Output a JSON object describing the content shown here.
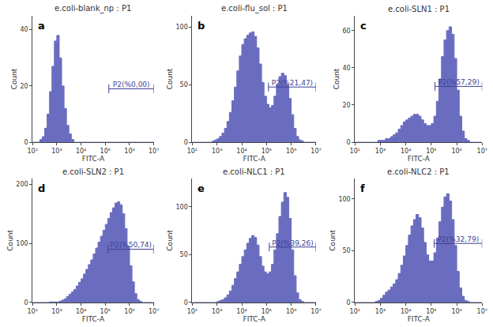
{
  "chart_data": [
    {
      "type": "histogram",
      "title": "e.coli-blank_np : P1",
      "panel": "a",
      "xlabel": "FITC-A",
      "ylabel": "Count",
      "log": "x",
      "grid": false,
      "color": "#6a6dbf",
      "bins": [
        100,
        125.9,
        158.5,
        199.5,
        251.2,
        316.2,
        398.1,
        501.2,
        631,
        794.3,
        1000,
        1259,
        1585,
        1995,
        2512,
        3162,
        3981,
        5012,
        6310,
        7943,
        10000,
        12590,
        15850,
        19950,
        25120,
        31620,
        39810,
        50120,
        63100,
        79430,
        100000,
        125900,
        158500,
        199500,
        251200,
        316200,
        398100,
        501200,
        631000,
        794300,
        1000000,
        1259000,
        1585000,
        1995000,
        2512000,
        3162000,
        3981000,
        5012000,
        6310000,
        7943000,
        10000000
      ],
      "values": [
        0,
        0,
        0,
        1,
        2,
        5,
        10,
        18,
        27,
        36,
        38,
        30,
        20,
        12,
        6,
        3,
        1,
        0,
        0,
        0,
        0,
        0,
        0,
        0,
        0,
        0,
        0,
        0,
        0,
        0,
        0,
        0,
        0,
        0,
        0,
        0,
        0,
        0,
        0,
        0,
        0,
        0,
        0,
        0,
        0,
        0,
        0,
        0,
        0,
        0
      ],
      "gate": {
        "label": "P2(%0,00)",
        "x": [
          140000,
          10000000
        ],
        "y": 19
      },
      "xlim": [
        100,
        10000000
      ],
      "xticks": [
        {
          "value": 100,
          "label": "10²"
        },
        {
          "value": 1000,
          "label": "10³"
        },
        {
          "value": 10000,
          "label": "10⁴"
        },
        {
          "value": 100000,
          "label": "10⁵"
        },
        {
          "value": 1000000,
          "label": "10⁶"
        },
        {
          "value": 10000000,
          "label": "10⁷"
        }
      ],
      "ylim": [
        0,
        45
      ],
      "yticks": [
        0,
        20,
        40
      ]
    },
    {
      "type": "histogram",
      "title": "e.coli-flu_sol : P1",
      "panel": "b",
      "xlabel": "FITC-A",
      "ylabel": "Count",
      "log": "x",
      "grid": false,
      "color": "#6a6dbf",
      "bins": [
        100,
        125.9,
        158.5,
        199.5,
        251.2,
        316.2,
        398.1,
        501.2,
        631,
        794.3,
        1000,
        1259,
        1585,
        1995,
        2512,
        3162,
        3981,
        5012,
        6310,
        7943,
        10000,
        12590,
        15850,
        19950,
        25120,
        31620,
        39810,
        50120,
        63100,
        79430,
        100000,
        125900,
        158500,
        199500,
        251200,
        316200,
        398100,
        501200,
        631000,
        794300,
        1000000,
        1259000,
        1585000,
        1995000,
        2512000,
        3162000,
        3981000,
        5012000,
        6310000,
        7943000,
        10000000
      ],
      "values": [
        0,
        0,
        0,
        0,
        0,
        0,
        0,
        0,
        1,
        2,
        3,
        5,
        8,
        12,
        18,
        26,
        36,
        48,
        62,
        75,
        85,
        90,
        93,
        95,
        96,
        92,
        82,
        68,
        52,
        40,
        33,
        30,
        32,
        40,
        50,
        57,
        60,
        58,
        50,
        38,
        24,
        12,
        5,
        2,
        1,
        0,
        0,
        0,
        0,
        0
      ],
      "gate": {
        "label": "P2(%21,47)",
        "x": [
          120000,
          10000000
        ],
        "y": 48
      },
      "xlim": [
        100,
        10000000
      ],
      "xticks": [
        {
          "value": 100,
          "label": "10²"
        },
        {
          "value": 1000,
          "label": "10³"
        },
        {
          "value": 10000,
          "label": "10⁴"
        },
        {
          "value": 100000,
          "label": "10⁵"
        },
        {
          "value": 1000000,
          "label": "10⁶"
        },
        {
          "value": 10000000,
          "label": "10⁷"
        }
      ],
      "ylim": [
        0,
        110
      ],
      "yticks": [
        0,
        50,
        100
      ]
    },
    {
      "type": "histogram",
      "title": "e.coli-SLN1 : P1",
      "panel": "c",
      "xlabel": "FITC-A",
      "ylabel": "Count",
      "log": "x",
      "grid": false,
      "color": "#6a6dbf",
      "bins": [
        100,
        125.9,
        158.5,
        199.5,
        251.2,
        316.2,
        398.1,
        501.2,
        631,
        794.3,
        1000,
        1259,
        1585,
        1995,
        2512,
        3162,
        3981,
        5012,
        6310,
        7943,
        10000,
        12590,
        15850,
        19950,
        25120,
        31620,
        39810,
        50120,
        63100,
        79430,
        100000,
        125900,
        158500,
        199500,
        251200,
        316200,
        398100,
        501200,
        631000,
        794300,
        1000000,
        1259000,
        1585000,
        1995000,
        2512000,
        3162000,
        3981000,
        5012000,
        6310000,
        7943000,
        10000000
      ],
      "values": [
        0,
        0,
        0,
        0,
        0,
        0,
        0,
        0,
        0,
        1,
        1,
        1,
        2,
        2,
        3,
        4,
        5,
        7,
        9,
        11,
        12,
        13,
        14,
        15,
        15,
        14,
        12,
        10,
        9,
        9,
        10,
        14,
        22,
        34,
        46,
        55,
        60,
        62,
        58,
        45,
        28,
        14,
        6,
        2,
        1,
        0,
        0,
        0,
        0,
        0
      ],
      "gate": {
        "label": "P2(%57,29)",
        "x": [
          140000,
          10000000
        ],
        "y": 30
      },
      "xlim": [
        100,
        10000000
      ],
      "xticks": [
        {
          "value": 100,
          "label": "10²"
        },
        {
          "value": 1000,
          "label": "10³"
        },
        {
          "value": 10000,
          "label": "10⁴"
        },
        {
          "value": 100000,
          "label": "10⁵"
        },
        {
          "value": 1000000,
          "label": "10⁶"
        },
        {
          "value": 10000000,
          "label": "10⁷"
        }
      ],
      "ylim": [
        0,
        68
      ],
      "yticks": [
        0,
        20,
        40,
        60
      ]
    },
    {
      "type": "histogram",
      "title": "e.coli-SLN2 : P1",
      "panel": "d",
      "xlabel": "FITC-A",
      "ylabel": "Count",
      "log": "x",
      "grid": false,
      "color": "#6a6dbf",
      "bins": [
        100,
        125.9,
        158.5,
        199.5,
        251.2,
        316.2,
        398.1,
        501.2,
        631,
        794.3,
        1000,
        1259,
        1585,
        1995,
        2512,
        3162,
        3981,
        5012,
        6310,
        7943,
        10000,
        12590,
        15850,
        19950,
        25120,
        31620,
        39810,
        50120,
        63100,
        79430,
        100000,
        125900,
        158500,
        199500,
        251200,
        316200,
        398100,
        501200,
        631000,
        794300,
        1000000,
        1259000,
        1585000,
        1995000,
        2512000,
        3162000,
        3981000,
        5012000,
        6310000,
        7943000,
        10000000
      ],
      "values": [
        0,
        0,
        0,
        0,
        0,
        0,
        0,
        1,
        1,
        1,
        1,
        2,
        4,
        6,
        10,
        14,
        18,
        22,
        28,
        34,
        40,
        48,
        56,
        64,
        72,
        82,
        92,
        102,
        112,
        122,
        132,
        142,
        152,
        160,
        168,
        170,
        165,
        150,
        125,
        95,
        62,
        35,
        15,
        5,
        2,
        0,
        0,
        0,
        0,
        0
      ],
      "gate": {
        "label": "P2(%50,74)",
        "x": [
          130000,
          10000000
        ],
        "y": 90
      },
      "xlim": [
        100,
        10000000
      ],
      "xticks": [
        {
          "value": 100,
          "label": "10²"
        },
        {
          "value": 1000,
          "label": "10³"
        },
        {
          "value": 10000,
          "label": "10⁴"
        },
        {
          "value": 100000,
          "label": "10⁵"
        },
        {
          "value": 1000000,
          "label": "10⁶"
        },
        {
          "value": 10000000,
          "label": "10⁷"
        }
      ],
      "ylim": [
        0,
        210
      ],
      "yticks": [
        0,
        100,
        200
      ]
    },
    {
      "type": "histogram",
      "title": "e.coli-NLC1 : P1",
      "panel": "e",
      "xlabel": "FITC-A",
      "ylabel": "Count",
      "log": "x",
      "grid": false,
      "color": "#6a6dbf",
      "bins": [
        100,
        125.9,
        158.5,
        199.5,
        251.2,
        316.2,
        398.1,
        501.2,
        631,
        794.3,
        1000,
        1259,
        1585,
        1995,
        2512,
        3162,
        3981,
        5012,
        6310,
        7943,
        10000,
        12590,
        15850,
        19950,
        25120,
        31620,
        39810,
        50120,
        63100,
        79430,
        100000,
        125900,
        158500,
        199500,
        251200,
        316200,
        398100,
        501200,
        631000,
        794300,
        1000000,
        1259000,
        1585000,
        1995000,
        2512000,
        3162000,
        3981000,
        5012000,
        6310000,
        7943000,
        10000000
      ],
      "values": [
        0,
        0,
        0,
        0,
        0,
        0,
        0,
        0,
        0,
        0,
        1,
        2,
        3,
        5,
        8,
        12,
        18,
        25,
        32,
        40,
        48,
        55,
        62,
        67,
        70,
        68,
        60,
        48,
        38,
        32,
        30,
        32,
        40,
        55,
        72,
        90,
        105,
        115,
        110,
        88,
        55,
        28,
        10,
        3,
        1,
        0,
        0,
        0,
        0,
        0
      ],
      "gate": {
        "label": "P2(%39,26)",
        "x": [
          130000,
          10000000
        ],
        "y": 58
      },
      "xlim": [
        100,
        10000000
      ],
      "xticks": [
        {
          "value": 100,
          "label": "10²"
        },
        {
          "value": 1000,
          "label": "10³"
        },
        {
          "value": 10000,
          "label": "10⁴"
        },
        {
          "value": 100000,
          "label": "10⁵"
        },
        {
          "value": 1000000,
          "label": "10⁶"
        },
        {
          "value": 10000000,
          "label": "10⁷"
        }
      ],
      "ylim": [
        0,
        130
      ],
      "yticks": [
        0,
        50,
        100
      ]
    },
    {
      "type": "histogram",
      "title": "e.coli-NLC2 : P1",
      "panel": "f",
      "xlabel": "FITC-A",
      "ylabel": "Count",
      "log": "x",
      "grid": false,
      "color": "#6a6dbf",
      "bins": [
        100,
        125.9,
        158.5,
        199.5,
        251.2,
        316.2,
        398.1,
        501.2,
        631,
        794.3,
        1000,
        1259,
        1585,
        1995,
        2512,
        3162,
        3981,
        5012,
        6310,
        7943,
        10000,
        12590,
        15850,
        19950,
        25120,
        31620,
        39810,
        50120,
        63100,
        79430,
        100000,
        125900,
        158500,
        199500,
        251200,
        316200,
        398100,
        501200,
        631000,
        794300,
        1000000,
        1259000,
        1585000,
        1995000,
        2512000,
        3162000,
        3981000,
        5012000,
        6310000,
        7943000,
        10000000
      ],
      "values": [
        0,
        0,
        0,
        0,
        0,
        0,
        0,
        0,
        1,
        2,
        4,
        7,
        10,
        12,
        15,
        18,
        22,
        28,
        36,
        45,
        55,
        65,
        74,
        80,
        85,
        82,
        72,
        58,
        46,
        40,
        40,
        48,
        62,
        78,
        92,
        102,
        105,
        98,
        80,
        55,
        30,
        14,
        6,
        2,
        1,
        0,
        0,
        0,
        0,
        0
      ],
      "gate": {
        "label": "P2(%32,79)",
        "x": [
          130000,
          10000000
        ],
        "y": 57
      },
      "xlim": [
        100,
        10000000
      ],
      "xticks": [
        {
          "value": 100,
          "label": "10²"
        },
        {
          "value": 1000,
          "label": "10³"
        },
        {
          "value": 10000,
          "label": "10⁴"
        },
        {
          "value": 100000,
          "label": "10⁵"
        },
        {
          "value": 1000000,
          "label": "10⁶"
        },
        {
          "value": 10000000,
          "label": "10⁷"
        }
      ],
      "ylim": [
        0,
        120
      ],
      "yticks": [
        0,
        50,
        100
      ]
    }
  ]
}
